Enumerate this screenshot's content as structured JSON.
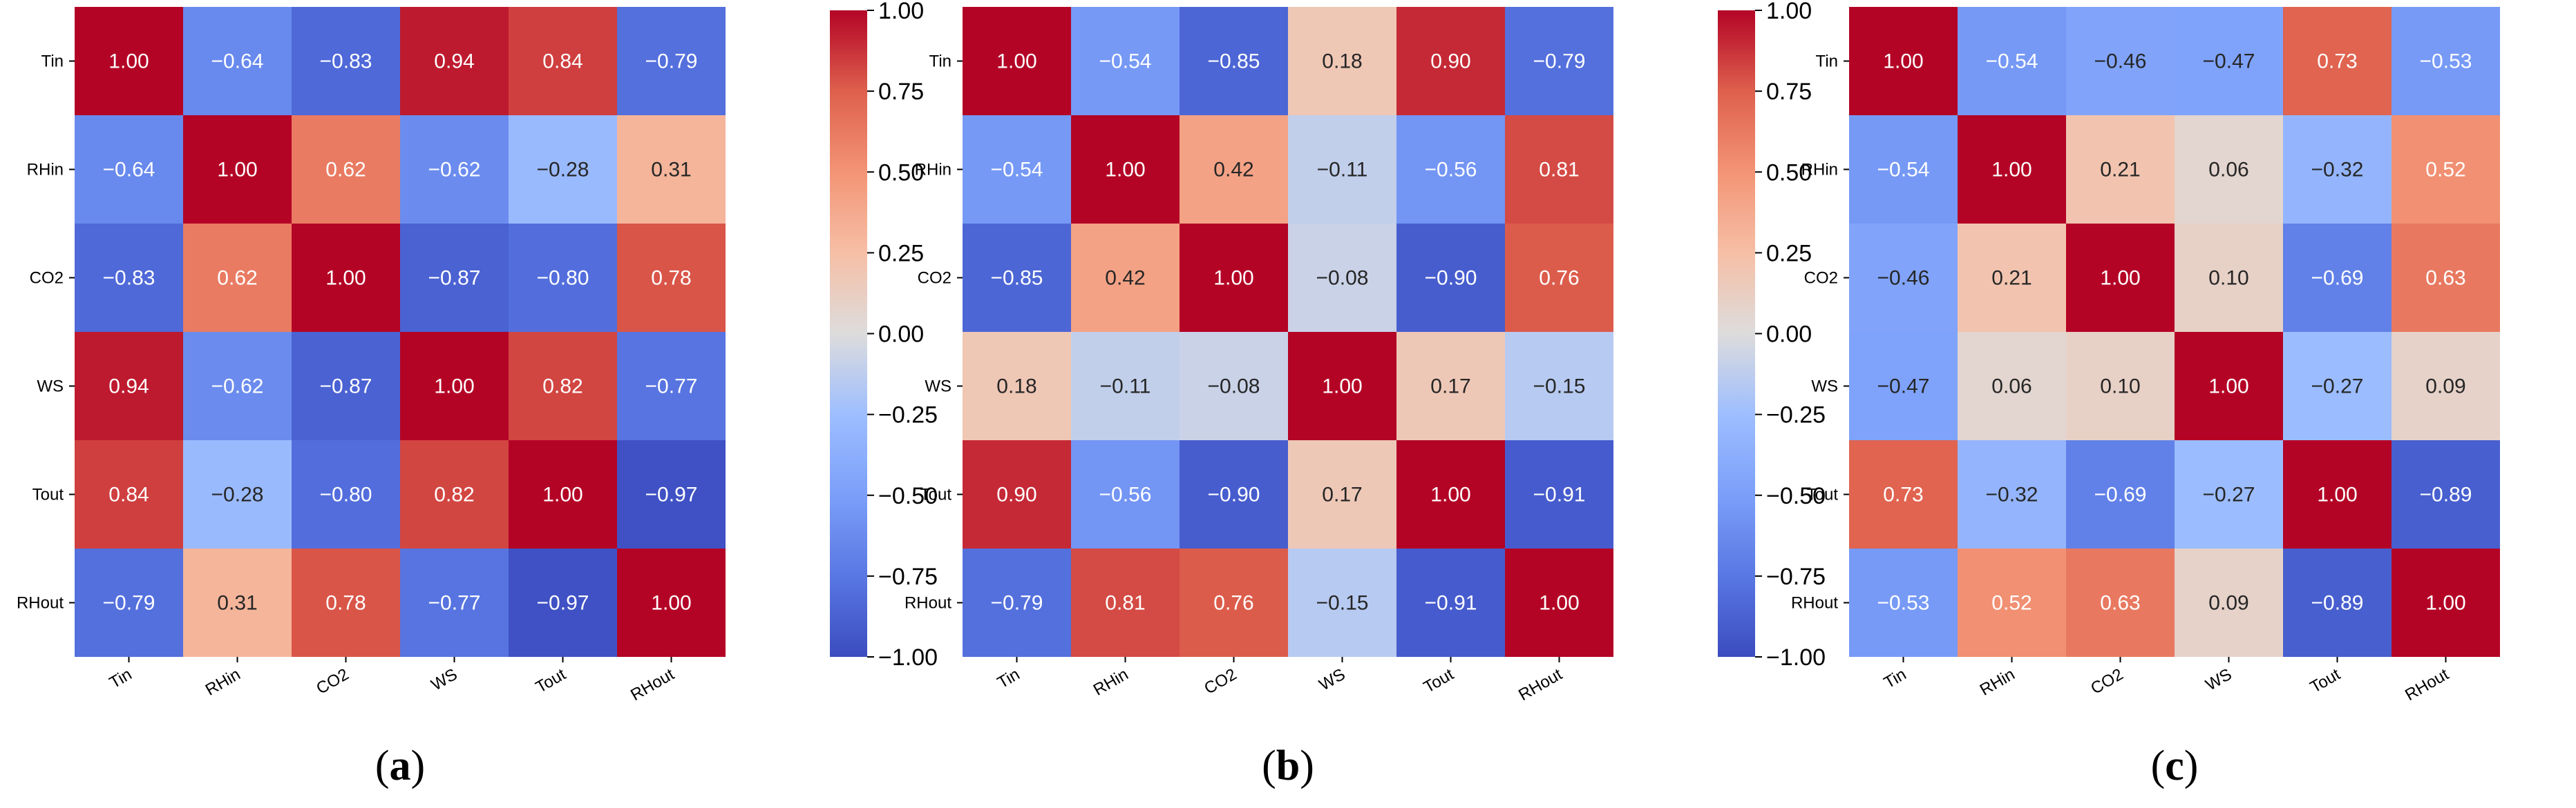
{
  "chart_data": [
    {
      "type": "heatmap",
      "caption": "a",
      "variables": [
        "Tin",
        "RHin",
        "CO2",
        "WS",
        "Tout",
        "RHout"
      ],
      "matrix": [
        [
          1.0,
          -0.64,
          -0.83,
          0.94,
          0.84,
          -0.79
        ],
        [
          -0.64,
          1.0,
          0.62,
          -0.62,
          -0.28,
          0.31
        ],
        [
          -0.83,
          0.62,
          1.0,
          -0.87,
          -0.8,
          0.78
        ],
        [
          0.94,
          -0.62,
          -0.87,
          1.0,
          0.82,
          -0.77
        ],
        [
          0.84,
          -0.28,
          -0.8,
          0.82,
          1.0,
          -0.97
        ],
        [
          -0.79,
          0.31,
          0.78,
          -0.77,
          -0.97,
          1.0
        ]
      ],
      "colorbar": {
        "colormap": "coolwarm",
        "range": [
          -1.0,
          1.0
        ],
        "ticks": [
          1.0,
          0.75,
          0.5,
          0.25,
          0.0,
          -0.25,
          -0.5,
          -0.75,
          -1.0
        ],
        "tick_labels": [
          "1.00",
          "0.75",
          "0.50",
          "0.25",
          "0.00",
          "−0.25",
          "−0.50",
          "−0.75",
          "−1.00"
        ]
      }
    },
    {
      "type": "heatmap",
      "caption": "b",
      "variables": [
        "Tin",
        "RHin",
        "CO2",
        "WS",
        "Tout",
        "RHout"
      ],
      "matrix": [
        [
          1.0,
          -0.54,
          -0.85,
          0.18,
          0.9,
          -0.79
        ],
        [
          -0.54,
          1.0,
          0.42,
          -0.11,
          -0.56,
          0.81
        ],
        [
          -0.85,
          0.42,
          1.0,
          -0.08,
          -0.9,
          0.76
        ],
        [
          0.18,
          -0.11,
          -0.08,
          1.0,
          0.17,
          -0.15
        ],
        [
          0.9,
          -0.56,
          -0.9,
          0.17,
          1.0,
          -0.91
        ],
        [
          -0.79,
          0.81,
          0.76,
          -0.15,
          -0.91,
          1.0
        ]
      ],
      "colorbar": {
        "colormap": "coolwarm",
        "range": [
          -1.0,
          1.0
        ],
        "ticks": [
          1.0,
          0.75,
          0.5,
          0.25,
          0.0,
          -0.25,
          -0.5,
          -0.75,
          -1.0
        ],
        "tick_labels": [
          "1.00",
          "0.75",
          "0.50",
          "0.25",
          "0.00",
          "−0.25",
          "−0.50",
          "−0.75",
          "−1.00"
        ]
      }
    },
    {
      "type": "heatmap",
      "caption": "c",
      "variables": [
        "Tin",
        "RHin",
        "CO2",
        "WS",
        "Tout",
        "RHout"
      ],
      "matrix": [
        [
          1.0,
          -0.54,
          -0.46,
          -0.47,
          0.73,
          -0.53
        ],
        [
          -0.54,
          1.0,
          0.21,
          0.06,
          -0.32,
          0.52
        ],
        [
          -0.46,
          0.21,
          1.0,
          0.1,
          -0.69,
          0.63
        ],
        [
          -0.47,
          0.06,
          0.1,
          1.0,
          -0.27,
          0.09
        ],
        [
          0.73,
          -0.32,
          -0.69,
          -0.27,
          1.0,
          -0.89
        ],
        [
          -0.53,
          0.52,
          0.63,
          0.09,
          -0.89,
          1.0
        ]
      ],
      "colorbar": {
        "colormap": "coolwarm",
        "range": [
          -1.0,
          1.0
        ],
        "ticks": [
          1.0,
          0.75,
          0.5,
          0.25,
          0.0,
          -0.25,
          -0.5,
          -0.75,
          -1.0
        ],
        "tick_labels": [
          "1.00",
          "0.75",
          "0.50",
          "0.25",
          "0.00",
          "−0.25",
          "−0.50",
          "−0.75",
          "−1.00"
        ]
      }
    }
  ]
}
